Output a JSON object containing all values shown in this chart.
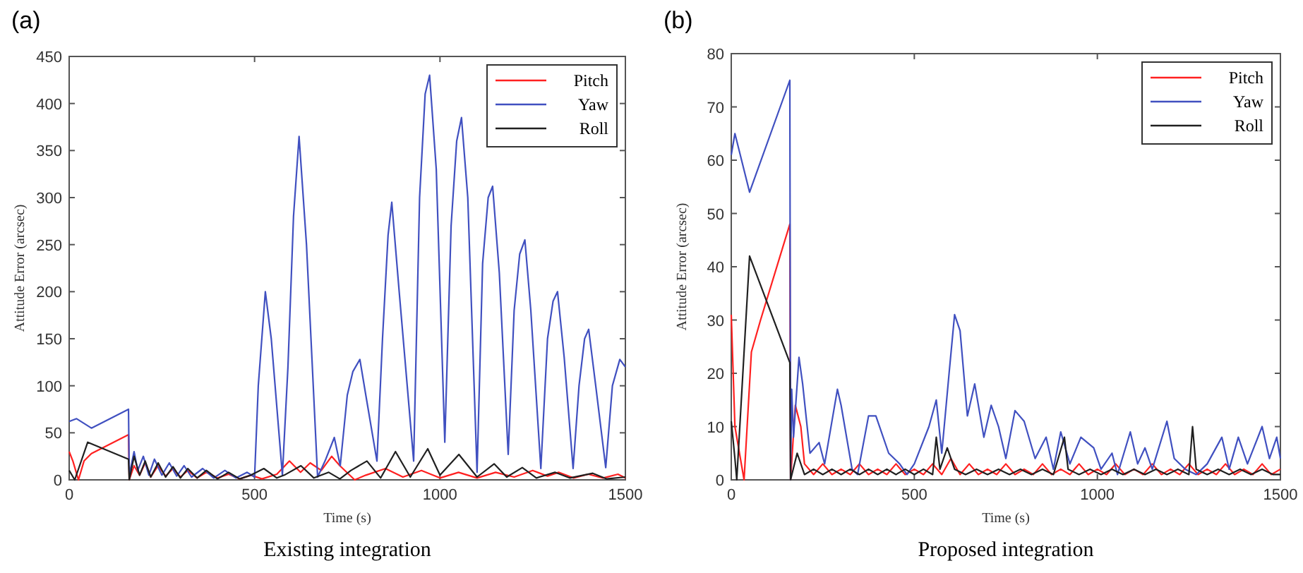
{
  "chart_data": [
    {
      "type": "line",
      "title": "(a)",
      "xlabel": "Time (s)",
      "ylabel": "Attitude Error (arcsec)",
      "annotations": [
        "Existing integration"
      ],
      "xlim": [
        0,
        1500
      ],
      "ylim": [
        0,
        450
      ],
      "xticks": [
        0,
        500,
        1000,
        1500
      ],
      "yticks": [
        0,
        50,
        100,
        150,
        200,
        250,
        300,
        350,
        400,
        450
      ],
      "grid": false,
      "legend": "top right",
      "marker": "none",
      "line_style": "solid",
      "series": [
        {
          "name": "Pitch",
          "color": "#ff2020",
          "x": [
            0,
            10,
            25,
            40,
            60,
            160,
            162,
            175,
            190,
            205,
            220,
            240,
            260,
            280,
            300,
            320,
            345,
            370,
            400,
            430,
            460,
            490,
            520,
            560,
            594,
            624,
            650,
            680,
            708,
            730,
            770,
            800,
            853,
            900,
            950,
            1000,
            1050,
            1100,
            1150,
            1200,
            1250,
            1290,
            1320,
            1360,
            1400,
            1440,
            1480,
            1500
          ],
          "values": [
            30,
            20,
            0,
            20,
            28,
            48,
            0,
            15,
            5,
            18,
            3,
            15,
            4,
            12,
            3,
            10,
            2,
            8,
            2,
            6,
            1,
            5,
            1,
            6,
            20,
            8,
            18,
            10,
            25,
            15,
            0,
            5,
            12,
            3,
            10,
            2,
            8,
            2,
            8,
            3,
            10,
            4,
            8,
            2,
            6,
            2,
            6,
            2
          ]
        },
        {
          "name": "Yaw",
          "color": "#4050c0",
          "x": [
            0,
            20,
            60,
            160,
            162,
            175,
            185,
            200,
            215,
            230,
            250,
            270,
            290,
            310,
            330,
            360,
            390,
            420,
            450,
            480,
            500,
            510,
            529,
            545,
            575,
            590,
            605,
            620,
            640,
            670,
            690,
            715,
            731,
            750,
            765,
            784,
            800,
            830,
            845,
            860,
            870,
            890,
            929,
            945,
            960,
            972,
            990,
            1013,
            1030,
            1045,
            1058,
            1075,
            1100,
            1115,
            1130,
            1142,
            1160,
            1184,
            1200,
            1215,
            1229,
            1245,
            1272,
            1290,
            1305,
            1317,
            1335,
            1359,
            1375,
            1390,
            1401,
            1420,
            1447,
            1465,
            1485,
            1500
          ],
          "values": [
            62,
            65,
            55,
            75,
            5,
            30,
            10,
            25,
            5,
            22,
            5,
            18,
            4,
            15,
            3,
            12,
            2,
            10,
            2,
            8,
            3,
            100,
            200,
            150,
            5,
            120,
            280,
            365,
            250,
            3,
            20,
            45,
            15,
            90,
            115,
            128,
            90,
            20,
            150,
            260,
            295,
            200,
            20,
            300,
            410,
            430,
            330,
            40,
            270,
            360,
            385,
            300,
            8,
            230,
            300,
            312,
            220,
            27,
            180,
            240,
            255,
            180,
            12,
            150,
            190,
            200,
            130,
            12,
            100,
            150,
            160,
            100,
            13,
            100,
            128,
            120
          ]
        },
        {
          "name": "Roll",
          "color": "#202020",
          "x": [
            0,
            15,
            50,
            160,
            162,
            175,
            190,
            205,
            220,
            240,
            260,
            280,
            300,
            320,
            345,
            370,
            400,
            430,
            460,
            490,
            525,
            560,
            580,
            625,
            660,
            700,
            730,
            760,
            803,
            840,
            880,
            920,
            967,
            1000,
            1051,
            1100,
            1146,
            1180,
            1222,
            1260,
            1310,
            1350,
            1412,
            1450,
            1500
          ],
          "values": [
            10,
            0,
            40,
            22,
            0,
            25,
            5,
            20,
            3,
            18,
            3,
            14,
            2,
            12,
            2,
            10,
            1,
            8,
            1,
            5,
            12,
            2,
            5,
            15,
            2,
            8,
            1,
            10,
            20,
            2,
            30,
            3,
            33,
            5,
            27,
            3,
            17,
            3,
            13,
            2,
            8,
            2,
            7,
            1,
            3
          ]
        }
      ]
    },
    {
      "type": "line",
      "title": "(b)",
      "xlabel": "Time (s)",
      "ylabel": "Attitude Error (arcsec)",
      "annotations": [
        "Proposed integration"
      ],
      "xlim": [
        0,
        1500
      ],
      "ylim": [
        0,
        80
      ],
      "xticks": [
        0,
        500,
        1000,
        1500
      ],
      "yticks": [
        0,
        10,
        20,
        30,
        40,
        50,
        60,
        70,
        80
      ],
      "grid": false,
      "legend": "top right",
      "marker": "none",
      "line_style": "solid",
      "series": [
        {
          "name": "Pitch",
          "color": "#ff2020",
          "x": [
            0,
            10,
            35,
            55,
            80,
            160,
            162,
            175,
            190,
            200,
            225,
            250,
            275,
            300,
            325,
            350,
            375,
            400,
            425,
            450,
            475,
            500,
            525,
            550,
            575,
            600,
            625,
            650,
            675,
            700,
            725,
            750,
            775,
            800,
            825,
            850,
            875,
            900,
            925,
            950,
            975,
            1000,
            1025,
            1050,
            1075,
            1100,
            1125,
            1150,
            1175,
            1200,
            1225,
            1250,
            1275,
            1300,
            1325,
            1350,
            1375,
            1400,
            1425,
            1450,
            1475,
            1500
          ],
          "values": [
            31,
            10,
            0,
            24,
            30,
            48,
            0,
            14,
            10,
            3,
            1,
            3,
            1,
            2,
            1,
            3,
            1,
            2,
            1,
            3,
            1,
            2,
            1,
            3,
            1,
            4,
            1,
            3,
            1,
            2,
            1,
            3,
            1,
            2,
            1,
            3,
            1,
            2,
            1,
            3,
            1,
            2,
            1,
            3,
            1,
            2,
            1,
            3,
            1,
            2,
            1,
            3,
            1,
            2,
            1,
            3,
            1,
            2,
            1,
            3,
            1,
            2
          ]
        },
        {
          "name": "Yaw",
          "color": "#4050c0",
          "x": [
            0,
            10,
            50,
            160,
            162,
            165,
            170,
            185,
            195,
            215,
            240,
            255,
            290,
            300,
            330,
            345,
            375,
            395,
            430,
            460,
            480,
            500,
            540,
            560,
            575,
            595,
            610,
            625,
            645,
            665,
            690,
            710,
            730,
            750,
            775,
            800,
            830,
            860,
            880,
            900,
            925,
            955,
            990,
            1010,
            1040,
            1055,
            1090,
            1110,
            1130,
            1150,
            1190,
            1210,
            1240,
            1270,
            1300,
            1340,
            1360,
            1385,
            1410,
            1450,
            1470,
            1490,
            1500
          ],
          "values": [
            61,
            65,
            54,
            75,
            0,
            17,
            8,
            23,
            18,
            5,
            7,
            3,
            17,
            14,
            2,
            1,
            12,
            12,
            5,
            3,
            1,
            3,
            10,
            15,
            5,
            20,
            31,
            28,
            12,
            18,
            8,
            14,
            10,
            4,
            13,
            11,
            4,
            8,
            2,
            9,
            3,
            8,
            6,
            2,
            5,
            1,
            9,
            3,
            6,
            2,
            11,
            4,
            2,
            1,
            3,
            8,
            2,
            8,
            3,
            10,
            4,
            8,
            4
          ]
        },
        {
          "name": "Roll",
          "color": "#202020",
          "x": [
            0,
            10,
            15,
            50,
            160,
            162,
            180,
            200,
            225,
            250,
            275,
            300,
            325,
            350,
            375,
            400,
            425,
            450,
            475,
            500,
            525,
            550,
            560,
            570,
            590,
            610,
            640,
            670,
            700,
            730,
            760,
            790,
            820,
            850,
            880,
            910,
            920,
            950,
            980,
            1010,
            1040,
            1070,
            1100,
            1130,
            1160,
            1190,
            1220,
            1250,
            1260,
            1270,
            1300,
            1330,
            1360,
            1390,
            1420,
            1450,
            1480,
            1500
          ],
          "values": [
            11,
            4,
            0,
            42,
            22,
            0,
            5,
            1,
            2,
            1,
            2,
            1,
            2,
            1,
            2,
            1,
            2,
            1,
            2,
            1,
            2,
            1,
            8,
            2,
            6,
            2,
            1,
            2,
            1,
            2,
            1,
            2,
            1,
            2,
            1,
            8,
            2,
            1,
            2,
            1,
            2,
            1,
            2,
            1,
            2,
            1,
            2,
            1,
            10,
            2,
            1,
            2,
            1,
            2,
            1,
            2,
            1,
            1
          ]
        }
      ]
    }
  ]
}
